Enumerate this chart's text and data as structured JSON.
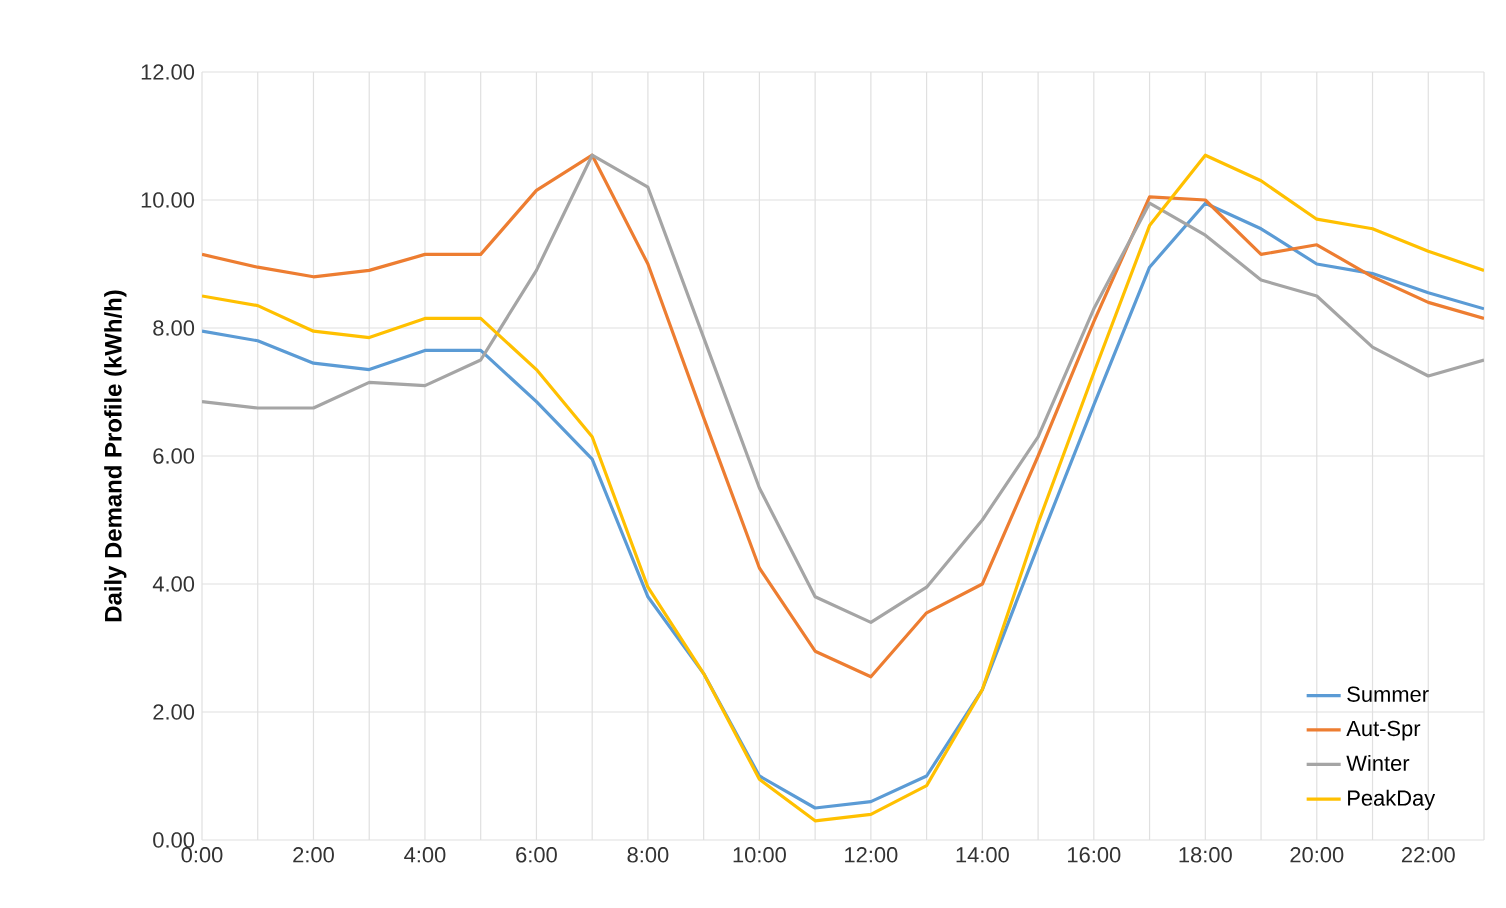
{
  "chart_data": {
    "type": "line",
    "ylabel": "Daily Demand Profile (kWh/h)",
    "categories": [
      "0:00",
      null,
      "2:00",
      null,
      "4:00",
      null,
      "6:00",
      null,
      "8:00",
      null,
      "10:00",
      null,
      "12:00",
      null,
      "14:00",
      null,
      "16:00",
      null,
      "18:00",
      null,
      "20:00",
      null,
      "22:00",
      null
    ],
    "series": [
      {
        "name": "Summer",
        "color": "#5b9bd5",
        "values": [
          7.95,
          7.8,
          7.45,
          7.35,
          7.65,
          7.65,
          6.85,
          5.95,
          3.8,
          2.6,
          1.0,
          0.5,
          0.6,
          1.0,
          2.35,
          4.6,
          6.8,
          8.95,
          9.95,
          9.55,
          9.0,
          8.85,
          8.55,
          8.3
        ]
      },
      {
        "name": "Aut-Spr",
        "color": "#ed7d31",
        "values": [
          9.15,
          8.95,
          8.8,
          8.9,
          9.15,
          9.15,
          10.15,
          10.7,
          9.0,
          6.6,
          4.25,
          2.95,
          2.55,
          3.55,
          4.0,
          6.0,
          8.1,
          10.05,
          10.0,
          9.15,
          9.3,
          8.8,
          8.4,
          8.15
        ]
      },
      {
        "name": "Winter",
        "color": "#a5a5a5",
        "values": [
          6.85,
          6.75,
          6.75,
          7.15,
          7.1,
          7.5,
          8.9,
          10.7,
          10.2,
          7.85,
          5.5,
          3.8,
          3.4,
          3.95,
          5.0,
          6.3,
          8.3,
          9.95,
          9.45,
          8.75,
          8.5,
          7.7,
          7.25,
          7.5
        ]
      },
      {
        "name": "PeakDay",
        "color": "#ffc000",
        "values": [
          8.5,
          8.35,
          7.95,
          7.85,
          8.15,
          8.15,
          7.35,
          6.3,
          3.95,
          2.6,
          0.95,
          0.3,
          0.4,
          0.85,
          2.35,
          4.95,
          7.3,
          9.6,
          10.7,
          10.3,
          9.7,
          9.55,
          9.2,
          8.9
        ]
      }
    ],
    "ylim": [
      0,
      12
    ],
    "yticks": [
      {
        "value": 0,
        "label": "0.00"
      },
      {
        "value": 2,
        "label": "2.00"
      },
      {
        "value": 4,
        "label": "4.00"
      },
      {
        "value": 6,
        "label": "6.00"
      },
      {
        "value": 8,
        "label": "8.00"
      },
      {
        "value": 10,
        "label": "10.00"
      },
      {
        "value": 12,
        "label": "12.00"
      }
    ],
    "grid": true,
    "legend": "bottom right",
    "marker": "none",
    "line_style": "solid"
  }
}
